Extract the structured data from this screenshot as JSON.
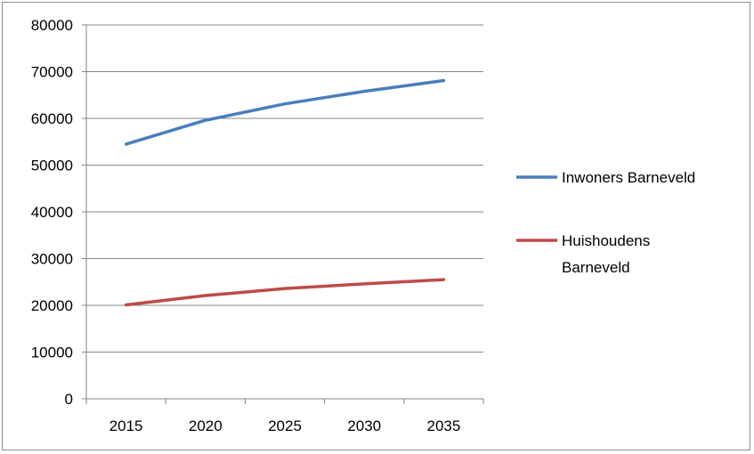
{
  "chart_data": {
    "type": "line",
    "title": "",
    "xlabel": "",
    "ylabel": "",
    "categories": [
      "2015",
      "2020",
      "2025",
      "2030",
      "2035"
    ],
    "ylim": [
      0,
      80000
    ],
    "yticks": [
      "0",
      "10000",
      "20000",
      "30000",
      "40000",
      "50000",
      "60000",
      "70000",
      "80000"
    ],
    "grid": true,
    "legend_position": "right",
    "series": [
      {
        "name": "Inwoners Barneveld",
        "name_lines": [
          "Inwoners Barneveld"
        ],
        "color": "#4a7ebb",
        "values": [
          54500,
          59600,
          63100,
          65800,
          68100
        ]
      },
      {
        "name": "Huishoudens Barneveld",
        "name_lines": [
          "Huishoudens",
          "Barneveld"
        ],
        "color": "#be4b48",
        "values": [
          20100,
          22100,
          23600,
          24600,
          25500
        ]
      }
    ]
  }
}
